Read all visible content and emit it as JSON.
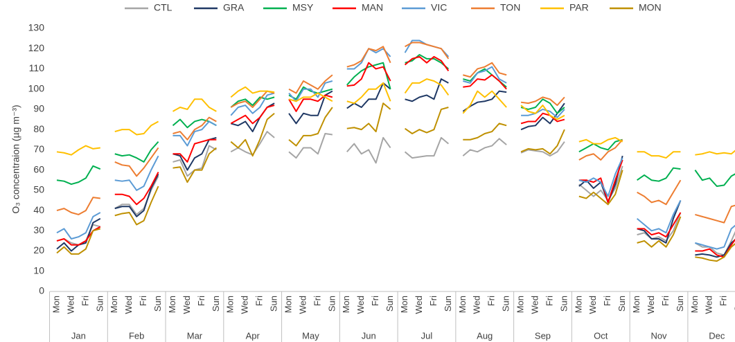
{
  "chart_data": {
    "type": "line",
    "y_label": "O₃ concentraion (µg m⁻³)",
    "ylim": [
      0,
      130
    ],
    "yticks": [
      0,
      10,
      20,
      30,
      40,
      50,
      60,
      70,
      80,
      90,
      100,
      110,
      120,
      130
    ],
    "grid": false,
    "legend": "top",
    "months": [
      "Jan",
      "Feb",
      "Mar",
      "Apr",
      "May",
      "Jun",
      "Jul",
      "Aug",
      "Sep",
      "Oct",
      "Nov",
      "Dec"
    ],
    "categories": [
      "Mon",
      null,
      "Wed",
      null,
      "Fri",
      null,
      "Sun",
      null,
      "Mon",
      null,
      "Wed",
      null,
      "Fri",
      null,
      "Sun",
      null,
      "Mon",
      null,
      "Wed",
      null,
      "Fri",
      null,
      "Sun",
      null,
      "Mon",
      null,
      "Wed",
      null,
      "Fri",
      null,
      "Sun",
      null,
      "Mon",
      null,
      "Wed",
      null,
      "Fri",
      null,
      "Sun",
      null,
      "Mon",
      null,
      "Wed",
      null,
      "Fri",
      null,
      "Sun",
      null,
      "Mon",
      null,
      "Wed",
      null,
      "Fri",
      null,
      "Sun",
      null,
      "Mon",
      null,
      "Wed",
      null,
      "Fri",
      null,
      "Sun",
      null,
      "Mon",
      null,
      "Wed",
      null,
      "Fri",
      null,
      "Sun",
      null,
      "Mon",
      null,
      "Wed",
      null,
      "Fri",
      null,
      "Sun",
      null,
      "Mon",
      null,
      "Wed",
      null,
      "Fri",
      null,
      "Sun",
      null,
      "Mon",
      null,
      "Wed",
      null,
      "Fri",
      null,
      "Sun",
      null
    ],
    "series": [
      {
        "name": "CTL",
        "color": "#a5a5a5",
        "values": [
          25,
          26,
          24,
          23,
          25,
          33,
          32,
          null,
          41,
          43,
          43,
          38,
          41,
          50,
          57,
          null,
          64,
          65,
          57,
          60,
          61,
          72,
          70,
          null,
          69,
          71,
          69,
          67.5,
          73,
          79,
          76,
          null,
          69,
          66,
          71,
          71,
          68,
          78,
          77.5,
          null,
          69,
          73,
          68,
          70,
          63.5,
          76,
          71,
          null,
          69,
          66,
          66.5,
          67,
          67,
          76,
          73,
          null,
          67,
          70,
          69,
          71,
          72,
          75.5,
          72.5,
          null,
          68.5,
          70,
          69.5,
          69,
          67,
          69,
          74,
          null,
          53,
          50,
          47,
          50,
          45,
          51,
          62,
          null,
          28,
          29,
          26,
          27,
          25,
          30,
          39,
          null,
          24,
          22,
          22,
          19,
          18,
          25,
          33,
          null
        ]
      },
      {
        "name": "GRA",
        "color": "#1f3864",
        "values": [
          21,
          24,
          20,
          23,
          24,
          34,
          36,
          null,
          41,
          42,
          42,
          37,
          40,
          51,
          58,
          null,
          68,
          67,
          60,
          66,
          68,
          75,
          76,
          null,
          83,
          82,
          84,
          79,
          86,
          91,
          93,
          null,
          88,
          83,
          88,
          87,
          87,
          97,
          99,
          null,
          90.5,
          93,
          91,
          95,
          95,
          103,
          100,
          null,
          95,
          94,
          96,
          97,
          95,
          105,
          103,
          null,
          89,
          91.5,
          93.5,
          94,
          95,
          99,
          98.5,
          null,
          80,
          81.5,
          82,
          86,
          83,
          88,
          93,
          null,
          52,
          55,
          51,
          54,
          44,
          53,
          67,
          null,
          31,
          30,
          26,
          26,
          24,
          36,
          45,
          null,
          18,
          18.5,
          18,
          17,
          18,
          24,
          27,
          null
        ]
      },
      {
        "name": "MSY",
        "color": "#00b050",
        "values": [
          55,
          54.5,
          53,
          54,
          56,
          62,
          60.5,
          null,
          68,
          67,
          67.5,
          66,
          64,
          70,
          74,
          null,
          82,
          85,
          81,
          84,
          85,
          84,
          82,
          null,
          91,
          94,
          95,
          92,
          96,
          95,
          96,
          null,
          97,
          95,
          101,
          99,
          98,
          99,
          100,
          null,
          102,
          106,
          109,
          111,
          112,
          113,
          100,
          null,
          113,
          114,
          117,
          115,
          115,
          113,
          110,
          null,
          105,
          104,
          108,
          110,
          107,
          104,
          101,
          null,
          91,
          90,
          91,
          95,
          93,
          88,
          91,
          null,
          69,
          71,
          73,
          71,
          70,
          74,
          75,
          null,
          55,
          57.5,
          55,
          54.5,
          56,
          61,
          60.5,
          null,
          60,
          55,
          56,
          52,
          52.5,
          57,
          59,
          null
        ]
      },
      {
        "name": "MAN",
        "color": "#ff0000",
        "values": [
          25,
          26,
          23,
          23,
          25,
          30,
          32,
          null,
          48,
          48,
          47,
          43,
          46,
          52,
          59,
          null,
          68,
          68,
          64,
          73,
          74,
          75,
          75,
          null,
          83,
          85,
          87,
          83,
          86,
          91,
          92,
          null,
          95,
          89,
          95,
          95,
          94,
          97,
          96,
          null,
          101.5,
          102,
          105,
          113,
          110,
          111,
          104,
          null,
          112,
          115,
          116,
          113,
          116,
          114,
          109,
          null,
          101,
          101.5,
          105,
          104.5,
          107,
          104,
          100,
          null,
          83,
          84,
          84,
          88,
          87,
          84,
          85,
          null,
          55,
          55,
          54,
          56,
          44,
          55,
          65,
          null,
          31,
          31,
          28,
          29,
          27,
          33,
          39,
          null,
          20,
          20,
          21,
          18,
          17,
          23,
          28,
          null
        ]
      },
      {
        "name": "VIC",
        "color": "#5b9bd5",
        "values": [
          29,
          31,
          26,
          27,
          29,
          37,
          39,
          null,
          55,
          54.5,
          55,
          50,
          52,
          60,
          67,
          null,
          77,
          77,
          72,
          79,
          80,
          84,
          82,
          null,
          87,
          91,
          92,
          88,
          91,
          97,
          98,
          null,
          98,
          94,
          100,
          100,
          96,
          103,
          104,
          null,
          110,
          110,
          113,
          120,
          118,
          120,
          116,
          null,
          118,
          124,
          124,
          122,
          121,
          120,
          116,
          null,
          104,
          103,
          108,
          109,
          111,
          105,
          103,
          null,
          87,
          87,
          88,
          90,
          89,
          86,
          90,
          null,
          55,
          54,
          56,
          54,
          47,
          58,
          66,
          null,
          36,
          33,
          30,
          31,
          29,
          38,
          45,
          null,
          24,
          23,
          22,
          21,
          22,
          31,
          34,
          null
        ]
      },
      {
        "name": "TON",
        "color": "#ed7d31",
        "values": [
          40,
          41,
          39,
          38,
          40,
          46.5,
          46,
          null,
          64,
          62.5,
          62,
          57,
          61,
          66,
          71,
          null,
          78,
          79,
          75,
          80,
          82,
          86,
          84,
          null,
          91,
          93,
          94,
          91,
          95,
          99,
          98,
          null,
          100,
          98,
          104,
          102,
          100,
          104,
          107,
          null,
          111,
          112,
          114,
          120,
          119,
          121,
          113,
          null,
          121,
          123,
          123,
          122,
          121,
          120,
          115,
          null,
          107,
          106,
          110,
          111,
          113,
          108,
          107,
          null,
          93.5,
          93,
          94,
          96,
          95,
          92,
          96,
          null,
          65,
          67,
          68,
          65,
          69,
          71,
          75,
          null,
          49,
          47,
          44,
          45,
          43,
          49,
          55,
          null,
          38,
          37,
          36,
          35,
          34,
          42,
          43,
          null
        ]
      },
      {
        "name": "PAR",
        "color": "#ffc000",
        "values": [
          69,
          68.5,
          67.5,
          70,
          72,
          70.5,
          71,
          null,
          79,
          80,
          80,
          77.5,
          78,
          82,
          84,
          null,
          89,
          91,
          90,
          95,
          95,
          91,
          89,
          null,
          96,
          99,
          101,
          98,
          99,
          99,
          98.5,
          null,
          95,
          94,
          96,
          96,
          98,
          96,
          94,
          null,
          94,
          93,
          96,
          100,
          100,
          103,
          94,
          null,
          98,
          103,
          103,
          105,
          104,
          102,
          97,
          null,
          88,
          92,
          99,
          96,
          99,
          95,
          91,
          null,
          92,
          89,
          88,
          92,
          87,
          85,
          87,
          null,
          74,
          75,
          73,
          73,
          75,
          76,
          74,
          null,
          69,
          69,
          67,
          67,
          66,
          69,
          69,
          null,
          67.5,
          68,
          69,
          68,
          68.5,
          68,
          71,
          null
        ]
      },
      {
        "name": "MON",
        "color": "#bf9000",
        "values": [
          19,
          22,
          18.5,
          18.5,
          21,
          30,
          31,
          null,
          37.5,
          38.5,
          39,
          33,
          35,
          44,
          52,
          null,
          61,
          61.5,
          54,
          60,
          60,
          68,
          71,
          null,
          74,
          71,
          75,
          67,
          75,
          85,
          88,
          null,
          75,
          72,
          77,
          77,
          78,
          86,
          91,
          null,
          80.5,
          81,
          80,
          83,
          79,
          93,
          90,
          null,
          80.5,
          78,
          80,
          78.5,
          80,
          90,
          91,
          null,
          75,
          75,
          76,
          78,
          79,
          83,
          82,
          null,
          69,
          70.5,
          70,
          70.5,
          68,
          72,
          80,
          null,
          47,
          46,
          49,
          46,
          43,
          48,
          60,
          null,
          24,
          25,
          22,
          25,
          22,
          28,
          37,
          null,
          17,
          16.5,
          15.5,
          15,
          17,
          22,
          25,
          null
        ]
      }
    ]
  }
}
